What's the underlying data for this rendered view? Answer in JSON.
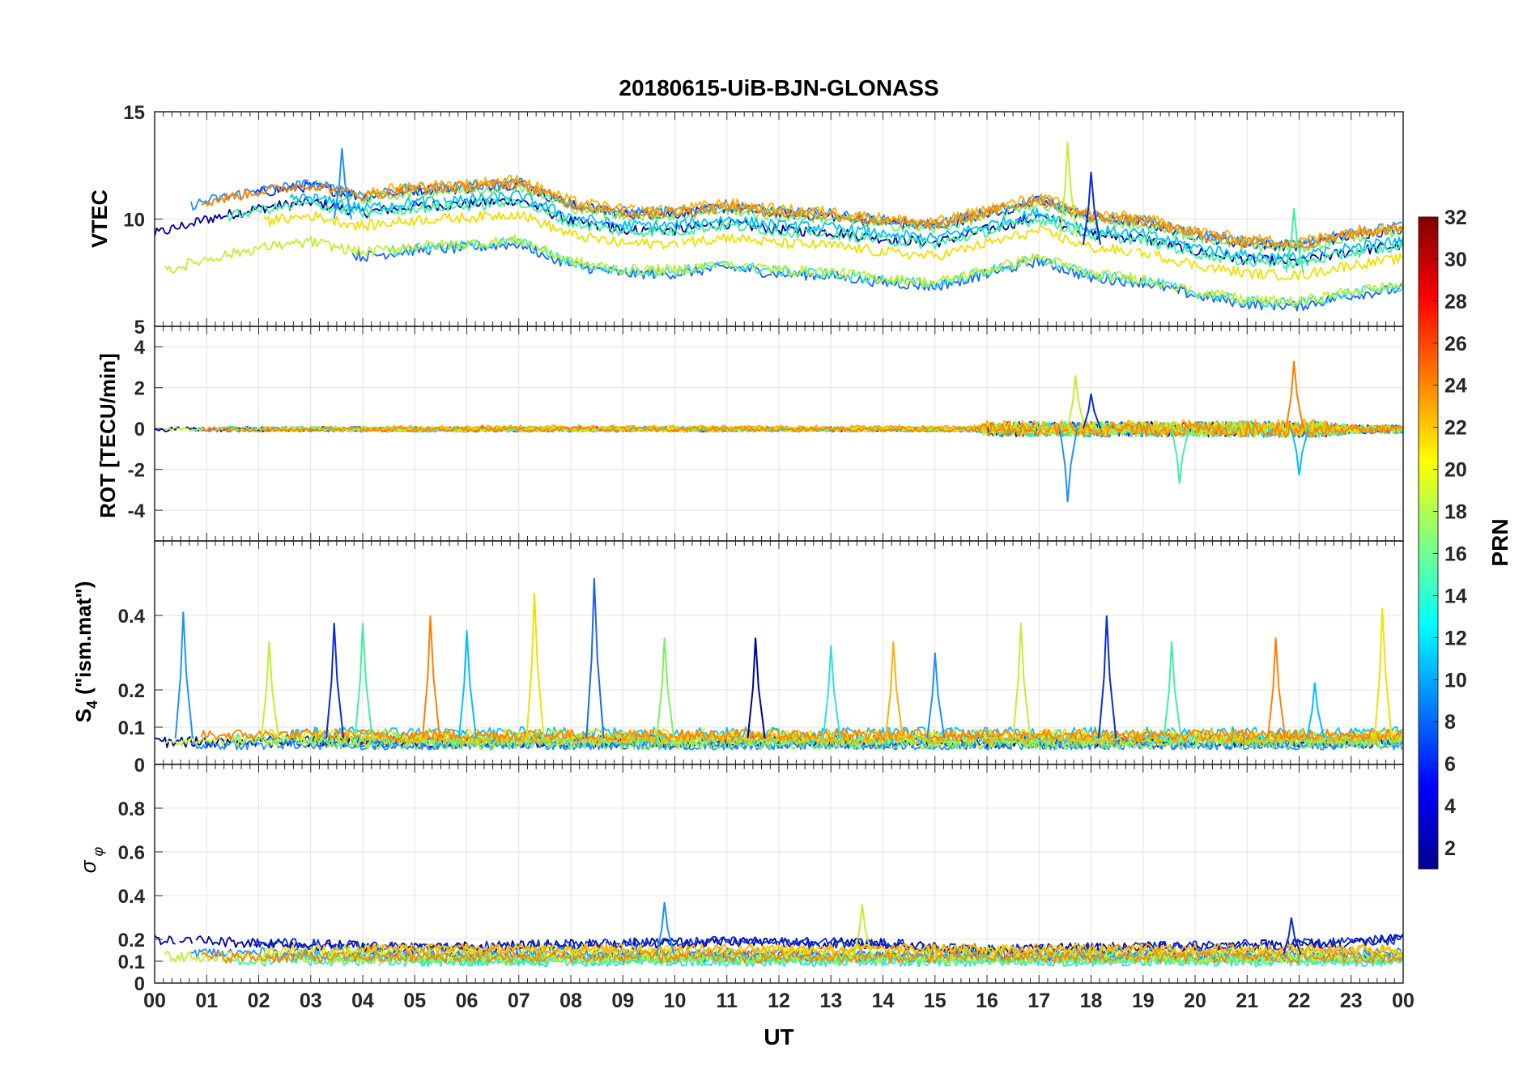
{
  "figure": {
    "title": "20180615-UiB-BJN-GLONASS",
    "xlabel": "UT",
    "x_ticks": [
      "00",
      "01",
      "02",
      "03",
      "04",
      "05",
      "06",
      "07",
      "08",
      "09",
      "10",
      "11",
      "12",
      "13",
      "14",
      "15",
      "16",
      "17",
      "18",
      "19",
      "20",
      "21",
      "22",
      "23",
      "00"
    ]
  },
  "chart_data": [
    {
      "type": "line",
      "panel": "vtec",
      "ylabel": "VTEC",
      "ylim": [
        5,
        15
      ],
      "yticks": [
        5,
        10,
        15
      ],
      "xlim": [
        0,
        24
      ],
      "grid": true,
      "trend": [
        [
          0,
          8.8
        ],
        [
          1,
          9.5
        ],
        [
          2,
          10.0
        ],
        [
          3,
          10.3
        ],
        [
          4,
          9.8
        ],
        [
          5,
          10.1
        ],
        [
          6,
          10.2
        ],
        [
          7,
          10.4
        ],
        [
          8,
          9.4
        ],
        [
          9,
          9.0
        ],
        [
          10,
          9.0
        ],
        [
          11,
          9.3
        ],
        [
          12,
          9.0
        ],
        [
          13,
          8.9
        ],
        [
          14,
          8.6
        ],
        [
          15,
          8.4
        ],
        [
          16,
          9.0
        ],
        [
          17,
          9.6
        ],
        [
          18,
          8.8
        ],
        [
          19,
          8.6
        ],
        [
          20,
          8.0
        ],
        [
          21,
          7.6
        ],
        [
          22,
          7.5
        ],
        [
          23,
          8.0
        ],
        [
          24,
          8.3
        ]
      ],
      "spread": 1.6,
      "noise": 0.25,
      "spikes": [
        [
          3.6,
          13.3
        ],
        [
          17.55,
          13.6
        ],
        [
          18.0,
          12.2
        ],
        [
          21.9,
          10.5
        ]
      ]
    },
    {
      "type": "line",
      "panel": "rot",
      "ylabel": "ROT [TECU/min]",
      "ylim": [
        -5.5,
        5
      ],
      "yticks": [
        -4,
        -2,
        0,
        2,
        4
      ],
      "xlim": [
        0,
        24
      ],
      "grid": true,
      "trend": [
        [
          0,
          0
        ],
        [
          24,
          0
        ]
      ],
      "spread": 0.05,
      "noise_by_hour": [
        [
          0,
          0.12
        ],
        [
          15.8,
          0.12
        ],
        [
          16.0,
          0.35
        ],
        [
          22.5,
          0.4
        ],
        [
          23,
          0.2
        ],
        [
          24,
          0.2
        ]
      ],
      "spikes": [
        [
          17.55,
          -3.6
        ],
        [
          17.7,
          2.6
        ],
        [
          18.0,
          1.7
        ],
        [
          19.7,
          -2.7
        ],
        [
          21.9,
          3.3
        ],
        [
          22.0,
          -2.3
        ]
      ]
    },
    {
      "type": "line",
      "panel": "s4",
      "ylabel": "S4 (\"ism.mat\")",
      "ylim": [
        0,
        0.6
      ],
      "yticks": [
        0,
        0.1,
        0.2,
        0.4
      ],
      "xlim": [
        0,
        24
      ],
      "grid": true,
      "trend": [
        [
          0,
          0.07
        ],
        [
          24,
          0.07
        ]
      ],
      "spread": 0.02,
      "noise": 0.015,
      "spikes": [
        [
          0.55,
          0.41
        ],
        [
          2.2,
          0.33
        ],
        [
          3.45,
          0.38
        ],
        [
          4.0,
          0.38
        ],
        [
          5.3,
          0.4
        ],
        [
          6.0,
          0.36
        ],
        [
          7.3,
          0.46
        ],
        [
          8.45,
          0.5
        ],
        [
          9.8,
          0.34
        ],
        [
          11.55,
          0.34
        ],
        [
          13.0,
          0.32
        ],
        [
          14.2,
          0.33
        ],
        [
          15.0,
          0.3
        ],
        [
          16.65,
          0.38
        ],
        [
          18.3,
          0.4
        ],
        [
          19.55,
          0.33
        ],
        [
          21.55,
          0.34
        ],
        [
          22.3,
          0.22
        ],
        [
          23.6,
          0.42
        ]
      ]
    },
    {
      "type": "line",
      "panel": "sigma",
      "ylabel": "σ φ",
      "ylim": [
        0,
        1
      ],
      "yticks": [
        0,
        0.1,
        0.2,
        0.4,
        0.6,
        0.8
      ],
      "xlim": [
        0,
        24
      ],
      "grid": true,
      "trend": [
        [
          0,
          0.13
        ],
        [
          24,
          0.13
        ]
      ],
      "spread": 0.03,
      "noise": 0.025,
      "high_band": [
        [
          0,
          0.2
        ],
        [
          5,
          0.16
        ],
        [
          11,
          0.19
        ],
        [
          14,
          0.18
        ],
        [
          16,
          0.15
        ],
        [
          22.5,
          0.18
        ],
        [
          24,
          0.2
        ]
      ],
      "spikes": [
        [
          9.8,
          0.37
        ],
        [
          13.6,
          0.36
        ],
        [
          21.85,
          0.3
        ]
      ]
    }
  ],
  "colorbar": {
    "label": "PRN",
    "range": [
      1,
      32
    ],
    "ticks": [
      2,
      4,
      6,
      8,
      10,
      12,
      14,
      16,
      18,
      20,
      22,
      24,
      26,
      28,
      30,
      32
    ],
    "colormap": "jet",
    "colors": [
      "#00008f",
      "#0000ff",
      "#00ffff",
      "#ffff00",
      "#ff0000",
      "#800000"
    ]
  },
  "series_palette": [
    "#00009c",
    "#0a2bd8",
    "#1c64f0",
    "#1e90ff",
    "#00bfff",
    "#30e0e0",
    "#40f0a0",
    "#7cf060",
    "#c0f030",
    "#f0e000",
    "#ffb000",
    "#ff8000"
  ]
}
